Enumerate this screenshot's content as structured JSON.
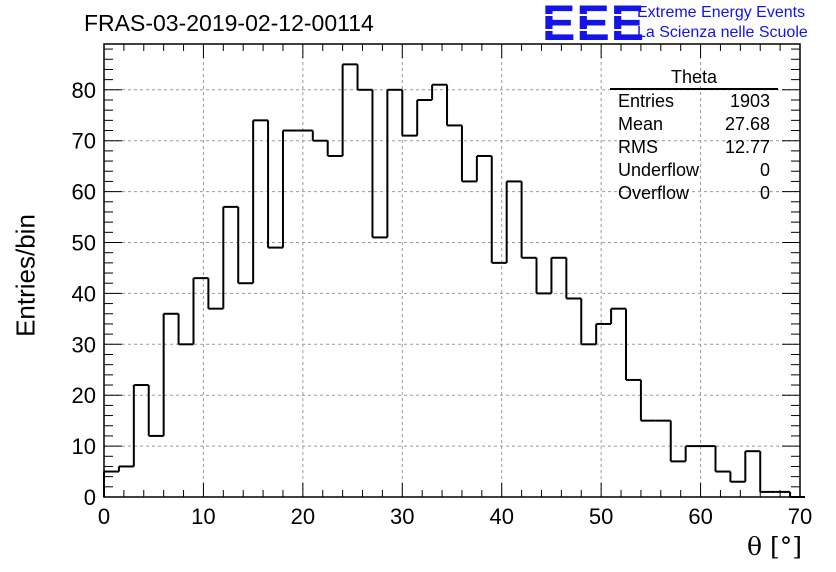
{
  "title": "FRAS-03-2019-02-12-00114",
  "logo": {
    "mark": "EEE",
    "line1": "Extreme Energy Events",
    "line2": "La Scienza nelle Scuole",
    "color": "#1414e6"
  },
  "stats": {
    "name": "Theta",
    "rows": [
      {
        "label": "Entries",
        "value": "1903"
      },
      {
        "label": "Mean",
        "value": "27.68"
      },
      {
        "label": "RMS",
        "value": "12.77"
      },
      {
        "label": "Underflow",
        "value": "0"
      },
      {
        "label": "Overflow",
        "value": "0"
      }
    ]
  },
  "chart_data": {
    "type": "bar",
    "style": "step-histogram",
    "title": "FRAS-03-2019-02-12-00114",
    "xlabel": "θ [°]",
    "ylabel": "Entries/bin",
    "xlim": [
      0,
      70
    ],
    "ylim": [
      0,
      89
    ],
    "bin_width": 1.5,
    "x_ticks": [
      0,
      10,
      20,
      30,
      40,
      50,
      60,
      70
    ],
    "y_ticks": [
      0,
      10,
      20,
      30,
      40,
      50,
      60,
      70,
      80
    ],
    "grid": true,
    "bin_edges_start": 0,
    "values": [
      5,
      6,
      22,
      12,
      36,
      30,
      43,
      37,
      57,
      42,
      74,
      49,
      72,
      72,
      70,
      67,
      85,
      80,
      51,
      80,
      71,
      78,
      81,
      73,
      62,
      67,
      46,
      62,
      47,
      40,
      47,
      39,
      30,
      34,
      37,
      23,
      15,
      15,
      7,
      10,
      10,
      5,
      3,
      9,
      1,
      1,
      0
    ]
  }
}
